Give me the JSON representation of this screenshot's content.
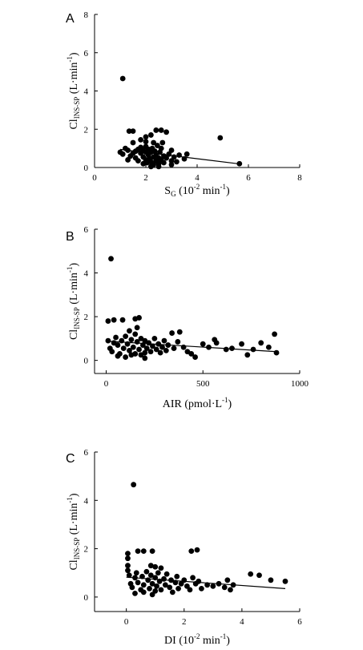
{
  "chart_data": [
    {
      "panel": "A",
      "type": "scatter",
      "xlabel": {
        "main": "S",
        "sub": "G",
        "rest": " (10",
        "sup": "-2",
        "tail": " min",
        "sup2": "-1",
        "close": ")"
      },
      "ylabel": {
        "main": "Cl",
        "sub": "INS-SP",
        "rest": " (L·min",
        "sup": "-1",
        "close": ")"
      },
      "xlim": [
        0,
        8
      ],
      "ylim": [
        0,
        8
      ],
      "xticks": [
        "0",
        "2",
        "4",
        "6",
        "8"
      ],
      "yticks": [
        "0",
        "2",
        "4",
        "6",
        "8"
      ],
      "trend": {
        "x": [
          1.0,
          5.7
        ],
        "y": [
          0.95,
          0.18
        ]
      },
      "points": [
        [
          1.1,
          4.65
        ],
        [
          1.35,
          1.9
        ],
        [
          1.5,
          1.9
        ],
        [
          1.8,
          1.45
        ],
        [
          2.0,
          1.35
        ],
        [
          2.4,
          1.95
        ],
        [
          2.6,
          1.95
        ],
        [
          2.8,
          1.85
        ],
        [
          2.2,
          1.7
        ],
        [
          4.9,
          1.55
        ],
        [
          5.65,
          0.2
        ],
        [
          1.0,
          0.8
        ],
        [
          1.1,
          0.7
        ],
        [
          1.2,
          1.0
        ],
        [
          1.3,
          0.9
        ],
        [
          1.4,
          0.6
        ],
        [
          1.5,
          0.75
        ],
        [
          1.6,
          0.85
        ],
        [
          1.6,
          0.5
        ],
        [
          1.7,
          0.95
        ],
        [
          1.7,
          0.35
        ],
        [
          1.8,
          1.05
        ],
        [
          1.8,
          0.75
        ],
        [
          1.9,
          0.55
        ],
        [
          1.9,
          0.9
        ],
        [
          2.0,
          0.4
        ],
        [
          2.0,
          0.8
        ],
        [
          2.0,
          1.1
        ],
        [
          2.05,
          0.25
        ],
        [
          2.1,
          0.65
        ],
        [
          2.1,
          0.95
        ],
        [
          2.15,
          0.45
        ],
        [
          2.2,
          0.8
        ],
        [
          2.2,
          0.3
        ],
        [
          2.25,
          1.0
        ],
        [
          2.3,
          0.55
        ],
        [
          2.3,
          0.15
        ],
        [
          2.35,
          0.85
        ],
        [
          2.4,
          0.35
        ],
        [
          2.4,
          0.65
        ],
        [
          2.45,
          1.15
        ],
        [
          2.5,
          0.5
        ],
        [
          2.5,
          0.2
        ],
        [
          2.55,
          0.8
        ],
        [
          2.6,
          0.4
        ],
        [
          2.6,
          1.0
        ],
        [
          2.7,
          0.6
        ],
        [
          2.7,
          0.25
        ],
        [
          2.8,
          0.5
        ],
        [
          2.9,
          0.7
        ],
        [
          3.0,
          0.35
        ],
        [
          3.0,
          0.9
        ],
        [
          3.1,
          0.55
        ],
        [
          3.2,
          0.3
        ],
        [
          3.3,
          0.65
        ],
        [
          3.5,
          0.45
        ],
        [
          3.6,
          0.7
        ],
        [
          1.3,
          0.4
        ],
        [
          1.5,
          1.3
        ],
        [
          2.0,
          1.6
        ],
        [
          2.3,
          1.3
        ],
        [
          2.65,
          1.3
        ],
        [
          1.9,
          0.2
        ],
        [
          2.2,
          0.05
        ],
        [
          2.5,
          0.05
        ],
        [
          3.0,
          0.15
        ]
      ]
    },
    {
      "panel": "B",
      "type": "scatter",
      "xlabel": {
        "main": "AIR (pmol·L",
        "sup": "-1",
        "close": ")"
      },
      "ylabel": {
        "main": "Cl",
        "sub": "INS-SP",
        "rest": " (L·min",
        "sup": "-1",
        "close": ")"
      },
      "xlim": [
        -60,
        1000
      ],
      "ylim": [
        -0.6,
        6
      ],
      "xticks": [
        "0",
        "500",
        "1000"
      ],
      "yticks": [
        "0",
        "2",
        "4",
        "6"
      ],
      "trend": {
        "x": [
          0,
          880
        ],
        "y": [
          0.88,
          0.4
        ]
      },
      "points": [
        [
          25,
          4.65
        ],
        [
          10,
          1.8
        ],
        [
          40,
          1.85
        ],
        [
          85,
          1.85
        ],
        [
          150,
          1.9
        ],
        [
          170,
          1.95
        ],
        [
          160,
          1.5
        ],
        [
          120,
          1.35
        ],
        [
          340,
          1.25
        ],
        [
          380,
          1.3
        ],
        [
          870,
          1.2
        ],
        [
          10,
          0.9
        ],
        [
          20,
          0.55
        ],
        [
          30,
          0.4
        ],
        [
          40,
          0.8
        ],
        [
          50,
          1.05
        ],
        [
          60,
          0.7
        ],
        [
          70,
          0.3
        ],
        [
          80,
          0.9
        ],
        [
          90,
          0.55
        ],
        [
          100,
          1.1
        ],
        [
          110,
          0.75
        ],
        [
          120,
          0.45
        ],
        [
          130,
          0.95
        ],
        [
          140,
          0.6
        ],
        [
          150,
          0.3
        ],
        [
          150,
          1.2
        ],
        [
          160,
          0.85
        ],
        [
          170,
          0.5
        ],
        [
          180,
          0.25
        ],
        [
          180,
          1.0
        ],
        [
          190,
          0.7
        ],
        [
          200,
          0.35
        ],
        [
          200,
          0.9
        ],
        [
          210,
          0.55
        ],
        [
          220,
          0.8
        ],
        [
          230,
          0.4
        ],
        [
          240,
          0.65
        ],
        [
          250,
          1.0
        ],
        [
          260,
          0.5
        ],
        [
          270,
          0.75
        ],
        [
          280,
          0.35
        ],
        [
          290,
          0.6
        ],
        [
          300,
          0.9
        ],
        [
          310,
          0.45
        ],
        [
          320,
          0.7
        ],
        [
          350,
          0.55
        ],
        [
          370,
          0.85
        ],
        [
          400,
          0.6
        ],
        [
          420,
          0.4
        ],
        [
          440,
          0.3
        ],
        [
          460,
          0.15
        ],
        [
          500,
          0.75
        ],
        [
          530,
          0.6
        ],
        [
          560,
          0.95
        ],
        [
          570,
          0.8
        ],
        [
          620,
          0.5
        ],
        [
          650,
          0.55
        ],
        [
          700,
          0.75
        ],
        [
          730,
          0.25
        ],
        [
          760,
          0.5
        ],
        [
          800,
          0.8
        ],
        [
          840,
          0.6
        ],
        [
          880,
          0.35
        ],
        [
          60,
          0.2
        ],
        [
          100,
          0.15
        ],
        [
          130,
          0.25
        ],
        [
          200,
          0.1
        ]
      ]
    },
    {
      "panel": "C",
      "type": "scatter",
      "xlabel": {
        "main": "DI (10",
        "sup": "-2",
        "tail": " min",
        "sup2": "-1",
        "close": ")"
      },
      "ylabel": {
        "main": "Cl",
        "sub": "INS-SP",
        "rest": " (L·min",
        "sup": "-1",
        "close": ")"
      },
      "xlim": [
        -1.1,
        6
      ],
      "ylim": [
        -0.6,
        6
      ],
      "xticks": [
        "0",
        "2",
        "4",
        "6"
      ],
      "yticks": [
        "0",
        "2",
        "4",
        "6"
      ],
      "trend": {
        "x": [
          0,
          5.5
        ],
        "y": [
          0.82,
          0.35
        ]
      },
      "points": [
        [
          0.25,
          4.65
        ],
        [
          0.05,
          1.8
        ],
        [
          0.05,
          1.6
        ],
        [
          0.4,
          1.9
        ],
        [
          0.6,
          1.9
        ],
        [
          0.9,
          1.9
        ],
        [
          2.25,
          1.9
        ],
        [
          2.45,
          1.95
        ],
        [
          0.05,
          1.3
        ],
        [
          0.05,
          1.1
        ],
        [
          0.85,
          1.3
        ],
        [
          1.0,
          1.25
        ],
        [
          1.2,
          1.2
        ],
        [
          4.3,
          0.95
        ],
        [
          4.6,
          0.9
        ],
        [
          5.0,
          0.7
        ],
        [
          5.5,
          0.65
        ],
        [
          0.1,
          0.9
        ],
        [
          0.15,
          0.55
        ],
        [
          0.2,
          0.4
        ],
        [
          0.3,
          0.8
        ],
        [
          0.35,
          1.0
        ],
        [
          0.4,
          0.6
        ],
        [
          0.5,
          0.3
        ],
        [
          0.55,
          0.85
        ],
        [
          0.6,
          0.5
        ],
        [
          0.7,
          1.05
        ],
        [
          0.75,
          0.7
        ],
        [
          0.8,
          0.35
        ],
        [
          0.85,
          0.9
        ],
        [
          0.9,
          0.55
        ],
        [
          1.0,
          0.25
        ],
        [
          1.0,
          0.8
        ],
        [
          1.05,
          0.45
        ],
        [
          1.1,
          1.0
        ],
        [
          1.15,
          0.65
        ],
        [
          1.2,
          0.3
        ],
        [
          1.3,
          0.75
        ],
        [
          1.35,
          0.5
        ],
        [
          1.4,
          0.95
        ],
        [
          1.5,
          0.4
        ],
        [
          1.55,
          0.7
        ],
        [
          1.6,
          0.2
        ],
        [
          1.7,
          0.6
        ],
        [
          1.75,
          0.85
        ],
        [
          1.8,
          0.35
        ],
        [
          1.9,
          0.55
        ],
        [
          2.0,
          0.7
        ],
        [
          2.1,
          0.45
        ],
        [
          2.2,
          0.3
        ],
        [
          2.3,
          0.8
        ],
        [
          2.4,
          0.55
        ],
        [
          2.5,
          0.65
        ],
        [
          2.6,
          0.35
        ],
        [
          2.8,
          0.5
        ],
        [
          3.0,
          0.45
        ],
        [
          3.2,
          0.55
        ],
        [
          3.4,
          0.4
        ],
        [
          3.6,
          0.3
        ],
        [
          3.7,
          0.5
        ],
        [
          3.5,
          0.7
        ],
        [
          0.3,
          0.15
        ],
        [
          0.6,
          0.2
        ],
        [
          0.9,
          0.1
        ]
      ]
    }
  ],
  "panel_letters": [
    "A",
    "B",
    "C"
  ]
}
